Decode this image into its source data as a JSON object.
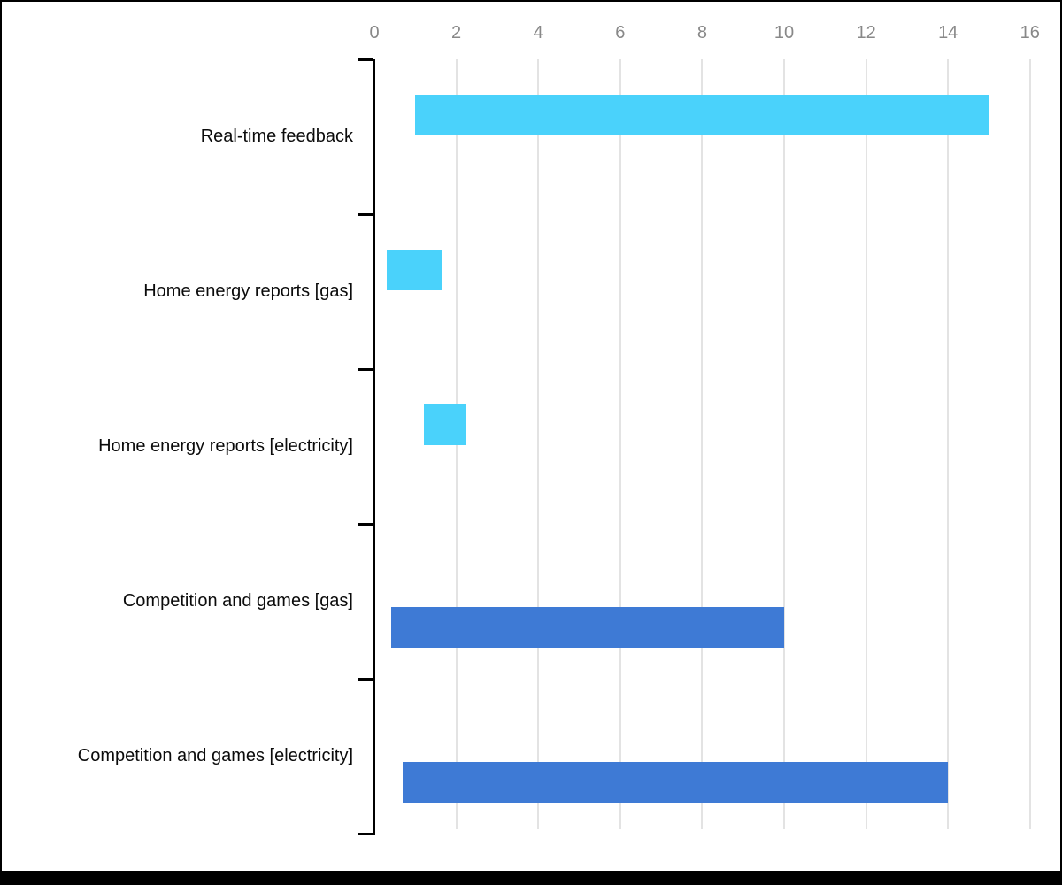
{
  "chart_data": {
    "type": "bar",
    "orientation": "horizontal",
    "bar_style": "floating-range",
    "title": "",
    "legend": "none",
    "grid": true,
    "categories": [
      "Real-time feedback",
      "Home energy reports [gas]",
      "Home energy reports [electricity]",
      "Competition and games [gas]",
      "Competition and games [electricity]"
    ],
    "series": [
      {
        "name": "light-blue-series",
        "color": "#4AD2FB"
      },
      {
        "name": "dark-blue-series",
        "color": "#3E7AD5"
      }
    ],
    "rows": [
      {
        "label": "Real-time feedback",
        "series": 0,
        "start": 1.0,
        "end": 15.0
      },
      {
        "label": "Home energy reports [gas]",
        "series": 0,
        "start": 0.3,
        "end": 1.65
      },
      {
        "label": "Home energy reports [electricity]",
        "series": 0,
        "start": 1.2,
        "end": 2.25
      },
      {
        "label": "Competition and games [gas]",
        "series": 1,
        "start": 0.4,
        "end": 10
      },
      {
        "label": "Competition and games [electricity]",
        "series": 1,
        "start": 0.7,
        "end": 14
      }
    ],
    "x_axis": {
      "min": 0,
      "max": 16,
      "tick_step": 2,
      "tick_labels": [
        "0",
        "2",
        "4",
        "6",
        "8",
        "10",
        "12",
        "14",
        "16"
      ],
      "position": "top",
      "tick_label_color": "#888888",
      "gridline_color": "#e3e3e3",
      "axis_color": "#000000"
    }
  },
  "frame": {
    "border_color": "#000000",
    "bottom_bar_color": "#000000"
  }
}
